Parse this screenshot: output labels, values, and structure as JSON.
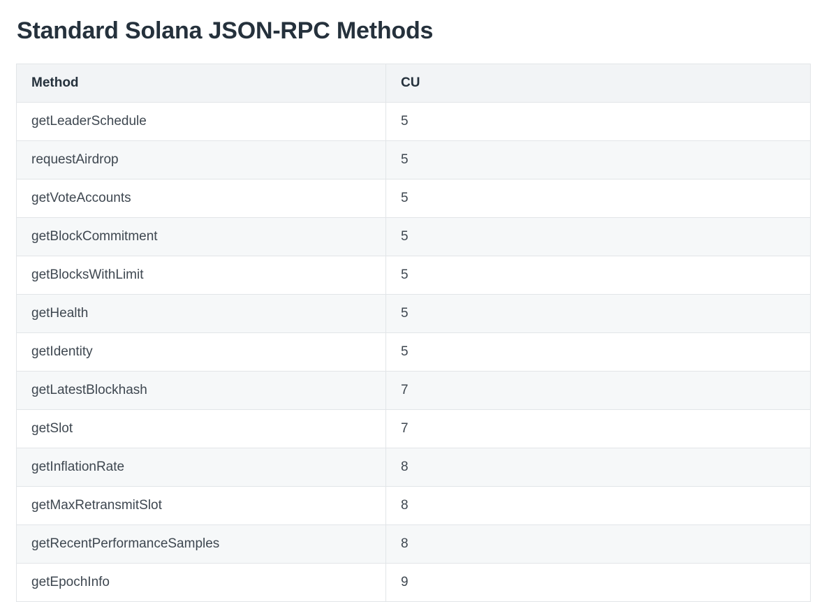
{
  "page": {
    "title": "Standard Solana JSON-RPC Methods"
  },
  "table": {
    "headers": {
      "method": "Method",
      "cu": "CU"
    },
    "rows": [
      {
        "method": "getLeaderSchedule",
        "cu": "5"
      },
      {
        "method": "requestAirdrop",
        "cu": "5"
      },
      {
        "method": "getVoteAccounts",
        "cu": "5"
      },
      {
        "method": "getBlockCommitment",
        "cu": "5"
      },
      {
        "method": "getBlocksWithLimit",
        "cu": "5"
      },
      {
        "method": "getHealth",
        "cu": "5"
      },
      {
        "method": "getIdentity",
        "cu": "5"
      },
      {
        "method": "getLatestBlockhash",
        "cu": "7"
      },
      {
        "method": "getSlot",
        "cu": "7"
      },
      {
        "method": "getInflationRate",
        "cu": "8"
      },
      {
        "method": "getMaxRetransmitSlot",
        "cu": "8"
      },
      {
        "method": "getRecentPerformanceSamples",
        "cu": "8"
      },
      {
        "method": "getEpochInfo",
        "cu": "9"
      }
    ]
  },
  "colors": {
    "title_text": "#25313c",
    "body_text": "#3e4750",
    "table_border": "#e2e5e8",
    "header_background": "#f2f4f6",
    "stripe_background": "#f6f8f9",
    "page_background": "#ffffff"
  }
}
